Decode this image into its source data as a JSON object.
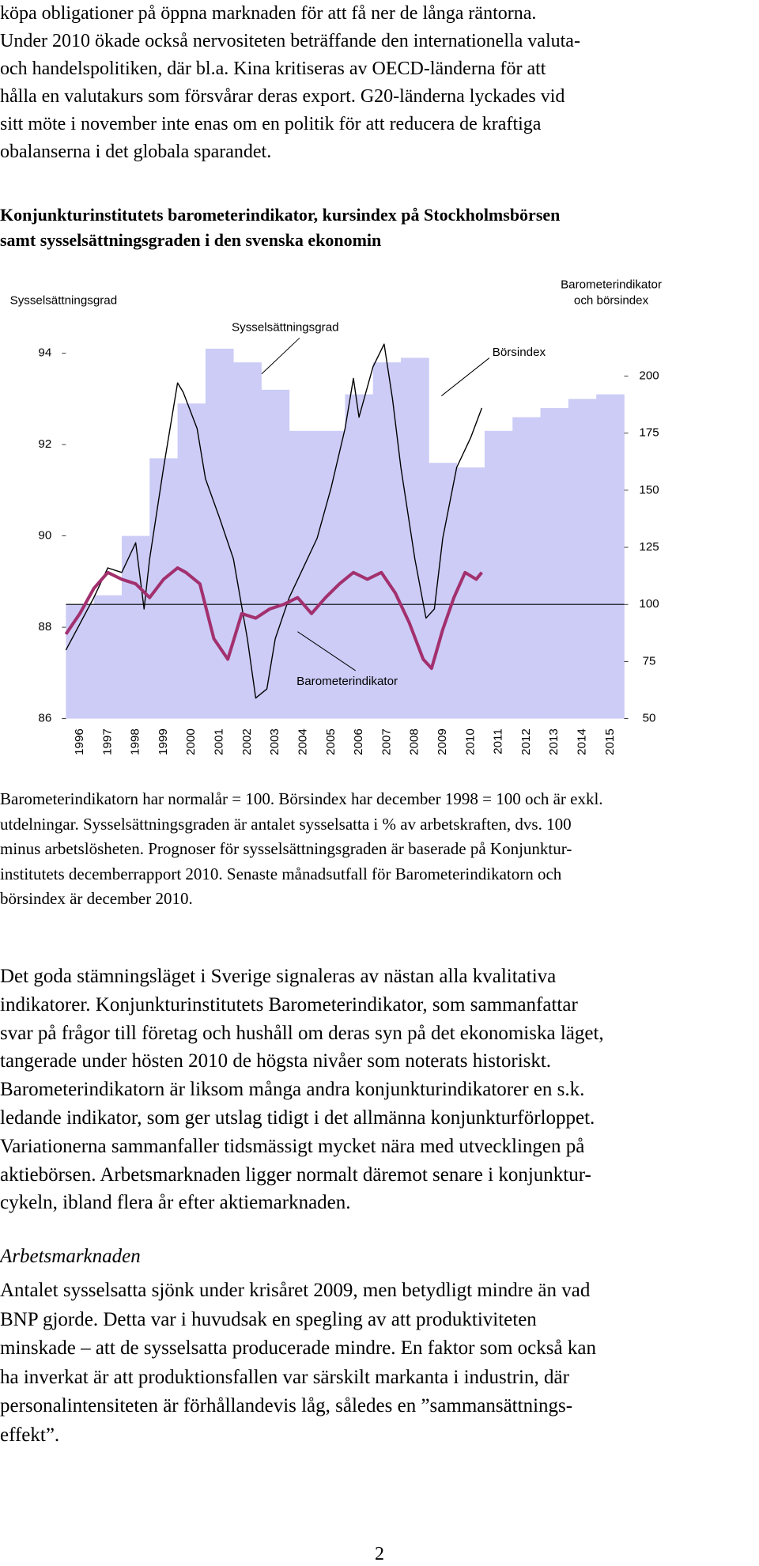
{
  "intro": [
    "köpa obligationer på öppna marknaden för att få ner de långa räntorna.",
    "Under 2010 ökade också nervositeten beträffande den internationella valuta-",
    "och handelspolitiken, där bl.a. Kina kritiseras av OECD-länderna för att",
    "hålla en valutakurs som försvårar deras export. G20-länderna lyckades vid",
    "sitt möte i november inte enas om en politik för att reducera de kraftiga",
    "obalanserna i det globala sparandet."
  ],
  "chart_data": {
    "type": "bar",
    "title": [
      "Konjunkturinstitutets barometerindikator, kursindex på Stockholmsbörsen",
      "samt sysselsättningsgraden i den svenska ekonomin"
    ],
    "y_label": "Sysselsättningsgrad",
    "y2_label": [
      "Barometerindikator",
      "och börsindex"
    ],
    "categories": [
      "1996",
      "1997",
      "1998",
      "1999",
      "2000",
      "2001",
      "2002",
      "2003",
      "2004",
      "2005",
      "2006",
      "2007",
      "2008",
      "2009",
      "2010",
      "2011",
      "2012",
      "2013",
      "2014",
      "2015"
    ],
    "xlim": [
      1996,
      2016
    ],
    "ylim": [
      86,
      94.4
    ],
    "yticks": [
      86,
      88,
      90,
      92,
      94
    ],
    "y2lim": [
      50,
      218
    ],
    "y2ticks": [
      50,
      75,
      100,
      125,
      150,
      175,
      200
    ],
    "hline": 100,
    "series": [
      {
        "name": "Sysselsättningsgrad",
        "type": "bar",
        "color": "#ccccf7",
        "values": [
          88.5,
          88.7,
          90.0,
          91.7,
          92.9,
          94.1,
          93.8,
          93.2,
          92.3,
          92.3,
          93.1,
          93.8,
          93.9,
          91.6,
          91.5,
          92.3,
          92.6,
          92.8,
          93.0,
          93.1
        ]
      },
      {
        "name": "Börsindex",
        "type": "line",
        "axis": "y2",
        "color": "#000000",
        "x": [
          1996.0,
          1997.0,
          1997.5,
          1998.0,
          1998.5,
          1998.8,
          1999.0,
          1999.5,
          2000.0,
          2000.2,
          2000.7,
          2001.0,
          2001.5,
          2002.0,
          2002.5,
          2002.8,
          2003.2,
          2003.5,
          2004.0,
          2004.5,
          2005.0,
          2005.5,
          2006.0,
          2006.3,
          2006.5,
          2007.0,
          2007.4,
          2007.7,
          2008.0,
          2008.5,
          2008.9,
          2009.2,
          2009.5,
          2010.0,
          2010.5,
          2010.9
        ],
        "values": [
          80,
          103,
          116,
          114,
          127,
          98,
          120,
          160,
          197,
          193,
          177,
          155,
          138,
          120,
          85,
          59,
          63,
          85,
          103,
          116,
          129,
          151,
          177,
          199,
          182,
          204,
          214,
          190,
          160,
          120,
          94,
          98,
          129,
          160,
          173,
          186
        ]
      },
      {
        "name": "Barometerindikator",
        "type": "line",
        "axis": "y2",
        "color": "#a3306e",
        "x": [
          1996.0,
          1996.5,
          1997.0,
          1997.5,
          1998.0,
          1998.5,
          1999.0,
          1999.5,
          2000.0,
          2000.3,
          2000.8,
          2001.3,
          2001.8,
          2002.3,
          2002.8,
          2003.3,
          2003.8,
          2004.3,
          2004.8,
          2005.3,
          2005.8,
          2006.3,
          2006.8,
          2007.3,
          2007.8,
          2008.3,
          2008.8,
          2009.1,
          2009.5,
          2009.9,
          2010.3,
          2010.7,
          2010.9
        ],
        "values": [
          87,
          96,
          107,
          114,
          111,
          109,
          103,
          111,
          116,
          114,
          109,
          85,
          76,
          96,
          94,
          98,
          100,
          103,
          96,
          103,
          109,
          114,
          111,
          114,
          105,
          92,
          76,
          72,
          89,
          103,
          114,
          111,
          114
        ]
      }
    ]
  },
  "caption": [
    "Barometerindikatorn har normalår = 100. Börsindex har december 1998 = 100 och är exkl.",
    "utdelningar. Sysselsättningsgraden är antalet sysselsatta i % av arbetskraften, dvs. 100",
    "minus arbetslösheten. Prognoser för sysselsättningsgraden är baserade på Konjunktur-",
    "institutets decemberrapport 2010. Senaste månadsutfall för Barometerindikatorn och",
    "börsindex är december 2010."
  ],
  "body1": [
    "Det goda stämningsläget i Sverige signaleras av nästan alla kvalitativa",
    "indikatorer. Konjunkturinstitutets Barometerindikator, som sammanfattar",
    "svar på frågor till företag och hushåll om deras syn på det ekonomiska läget,",
    "tangerade under hösten 2010 de högsta nivåer som noterats historiskt.",
    "Barometerindikatorn är liksom många andra konjunkturindikatorer en s.k.",
    "ledande indikator, som ger utslag tidigt i det allmänna konjunkturförloppet.",
    "Variationerna sammanfaller tidsmässigt mycket nära med utvecklingen på",
    "aktiebörsen. Arbetsmarknaden ligger normalt däremot senare i konjunktur-",
    "cykeln, ibland flera år efter aktiemarknaden."
  ],
  "subheading": "Arbetsmarknaden",
  "body2": [
    "Antalet sysselsatta sjönk under krisåret 2009, men betydligt mindre än vad",
    "BNP gjorde. Detta var i huvudsak en spegling av att produktiviteten",
    "minskade – att de sysselsatta producerade mindre. En faktor som också kan",
    "ha inverkat är att produktionsfallen var särskilt markanta i industrin, där",
    "personalintensiteten är förhållandevis låg, således en ”sammansättnings-",
    "effekt”."
  ],
  "page_number": "2"
}
